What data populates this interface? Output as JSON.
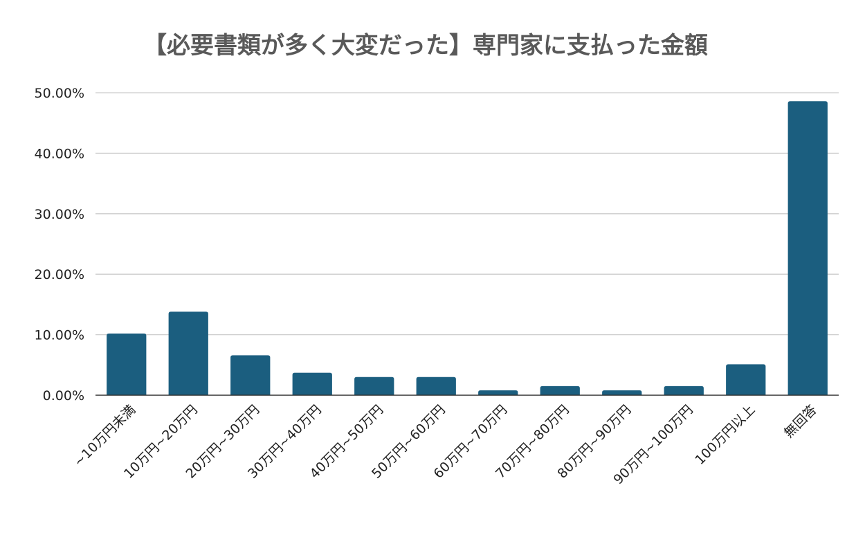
{
  "chart_data": {
    "type": "bar",
    "title": "【必要書類が多く大変だった】専門家に支払った金額",
    "xlabel": "",
    "ylabel": "",
    "categories": [
      "~10万円未満",
      "10万円~20万円",
      "20万円~30万円",
      "30万円~40万円",
      "40万円~50万円",
      "50万円~60万円",
      "60万円~70万円",
      "70万円~80万円",
      "80万円~90万円",
      "90万円~100万円",
      "100万円以上",
      "無回答"
    ],
    "values": [
      10.2,
      13.8,
      6.6,
      3.7,
      3.0,
      3.0,
      0.8,
      1.5,
      0.8,
      1.5,
      5.1,
      48.6
    ],
    "ylim": [
      0,
      50
    ],
    "yticks": [
      "0.00%",
      "10.00%",
      "20.00%",
      "30.00%",
      "40.00%",
      "50.00%"
    ],
    "ytick_values": [
      0,
      10,
      20,
      30,
      40,
      50
    ],
    "grid": true,
    "legend": "none",
    "bar_color": "#1b5e7f"
  }
}
